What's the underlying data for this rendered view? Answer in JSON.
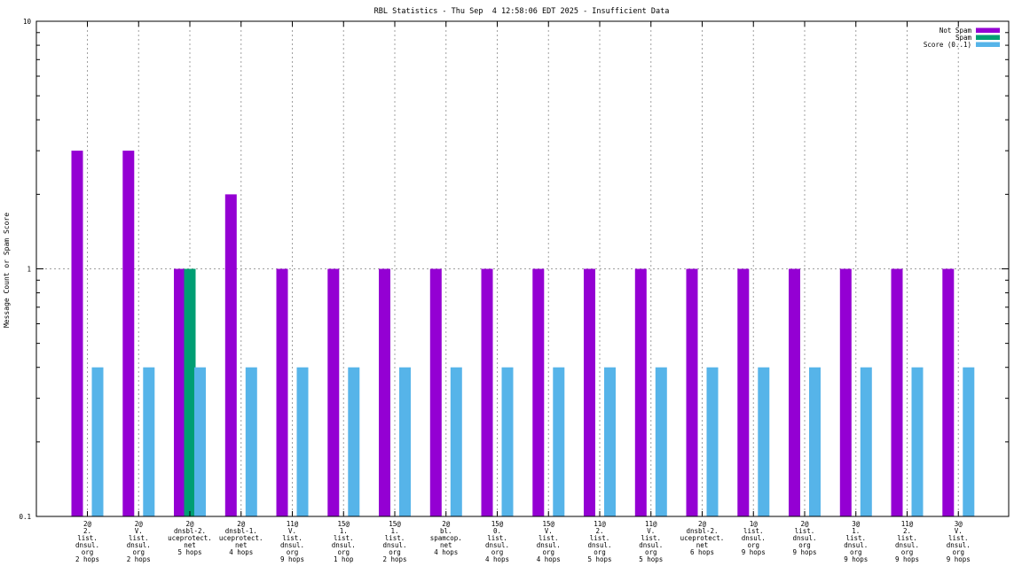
{
  "chart_data": {
    "type": "bar",
    "title": "RBL Statistics - Thu Sep  4 12:58:06 EDT 2025 - Insufficient Data",
    "ylabel": "Message Count or Spam Score",
    "xlabel": "",
    "yscale": "log",
    "ylim": [
      0.1,
      10
    ],
    "yticks": [
      "0.1",
      "1",
      "10"
    ],
    "grid": true,
    "legend_position": "top-right",
    "categories": [
      [
        "2@",
        "2.",
        "list.",
        "dnsul.",
        "org",
        "2 hops"
      ],
      [
        "2@",
        "V.",
        "list.",
        "dnsul.",
        "org",
        "2 hops"
      ],
      [
        "2@",
        "dnsbl-2.",
        "uceprotect.",
        "net",
        "5 hops"
      ],
      [
        "2@",
        "dnsbl-1.",
        "uceprotect.",
        "net",
        "4 hops"
      ],
      [
        "11@",
        "V.",
        "list.",
        "dnsul.",
        "org",
        "9 hops"
      ],
      [
        "15@",
        "1.",
        "list.",
        "dnsul.",
        "org",
        "1 hop"
      ],
      [
        "15@",
        "1.",
        "list.",
        "dnsul.",
        "org",
        "2 hops"
      ],
      [
        "2@",
        "bl.",
        "spamcop.",
        "net",
        "4 hops"
      ],
      [
        "15@",
        "0.",
        "list.",
        "dnsul.",
        "org",
        "4 hops"
      ],
      [
        "15@",
        "V.",
        "list.",
        "dnsul.",
        "org",
        "4 hops"
      ],
      [
        "11@",
        "2.",
        "list.",
        "dnsul.",
        "org",
        "5 hops"
      ],
      [
        "11@",
        "V.",
        "list.",
        "dnsul.",
        "org",
        "5 hops"
      ],
      [
        "2@",
        "dnsbl-2.",
        "uceprotect.",
        "net",
        "6 hops"
      ],
      [
        "1@",
        "list.",
        "dnsul.",
        "org",
        "9 hops"
      ],
      [
        "2@",
        "list.",
        "dnsul.",
        "org",
        "9 hops"
      ],
      [
        "3@",
        "1.",
        "list.",
        "dnsul.",
        "org",
        "9 hops"
      ],
      [
        "11@",
        "2.",
        "list.",
        "dnsul.",
        "org",
        "9 hops"
      ],
      [
        "3@",
        "V.",
        "list.",
        "dnsul.",
        "org",
        "9 hops"
      ]
    ],
    "series": [
      {
        "name": "Not Spam",
        "color": "#9400d3",
        "values": [
          3,
          3,
          1,
          2,
          1,
          1,
          1,
          1,
          1,
          1,
          1,
          1,
          1,
          1,
          1,
          1,
          1,
          1
        ]
      },
      {
        "name": "Spam",
        "color": "#009e73",
        "values": [
          0,
          0,
          1,
          0,
          0,
          0,
          0,
          0,
          0,
          0,
          0,
          0,
          0,
          0,
          0,
          0,
          0,
          0
        ]
      },
      {
        "name": "Score (0..1)",
        "color": "#56b4e9",
        "values": [
          0.4,
          0.4,
          0.4,
          0.4,
          0.4,
          0.4,
          0.4,
          0.4,
          0.4,
          0.4,
          0.4,
          0.4,
          0.4,
          0.4,
          0.4,
          0.4,
          0.4,
          0.4
        ]
      }
    ]
  }
}
